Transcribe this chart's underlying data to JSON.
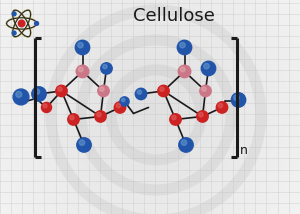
{
  "title": "Cellulose",
  "title_fontsize": 13,
  "bg_color_top": "#e0e0e0",
  "bg_color": "#d8d8d8",
  "grid_color": "#c8c8c8",
  "bond_color": "#1a1a1a",
  "atom_red": "#cc2222",
  "atom_red_light": "#e06060",
  "atom_pink": "#cc7788",
  "atom_pink_light": "#ddaaaa",
  "atom_blue": "#2255aa",
  "atom_blue_light": "#6699cc",
  "n_label": "n"
}
